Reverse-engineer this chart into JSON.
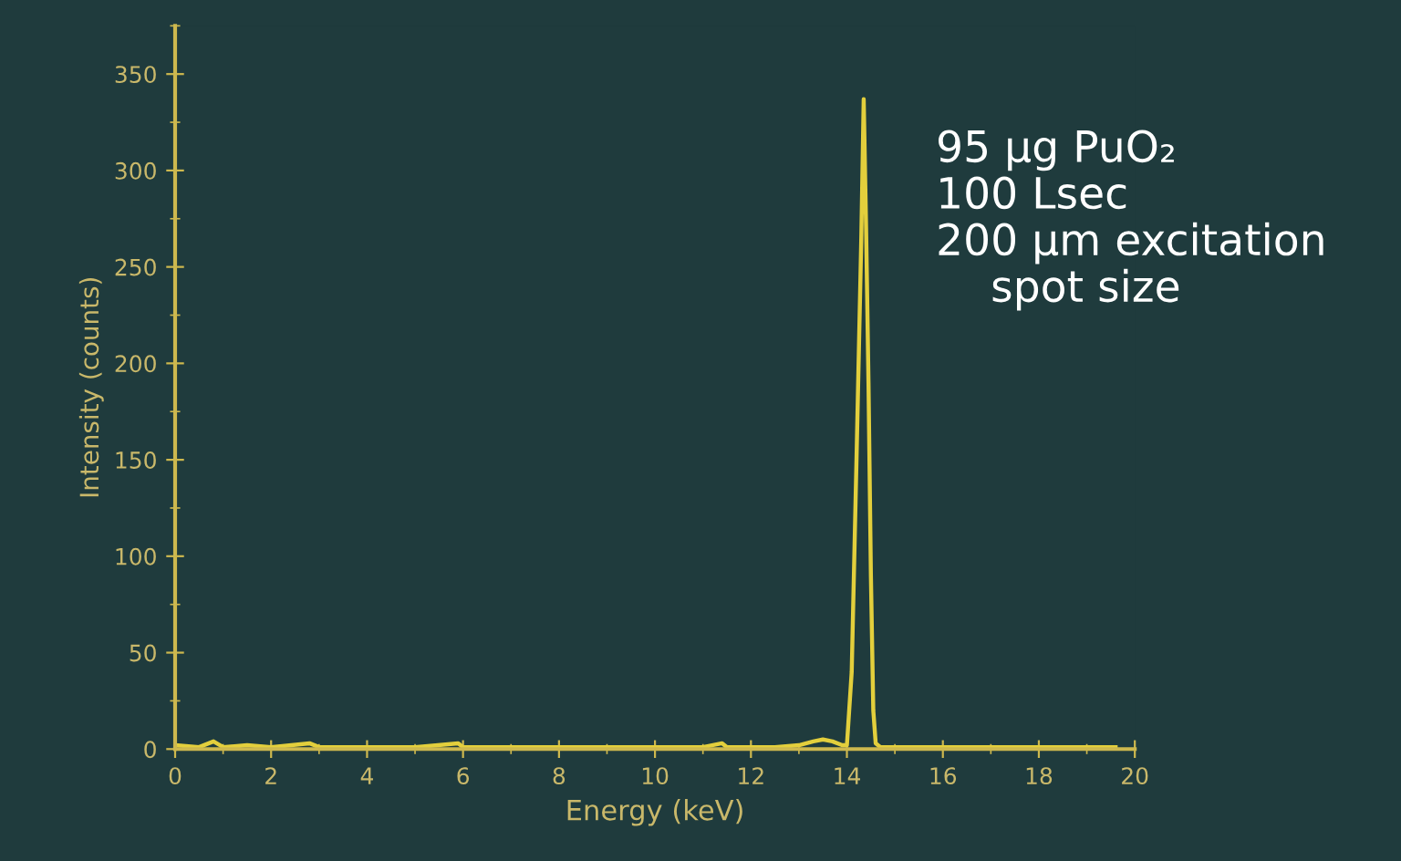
{
  "chart_data": {
    "type": "line",
    "xlabel": "Energy (keV)",
    "ylabel": "Intensity (counts)",
    "annotations": [
      "95 μg PuO₂\n100 Lsec\n200 μm excitation\n    spot size"
    ],
    "xlim": [
      0,
      20
    ],
    "xticks": [
      0,
      2,
      4,
      6,
      8,
      10,
      12,
      14,
      16,
      18,
      20
    ],
    "ylim": [
      0,
      375
    ],
    "yticks": [
      0,
      50,
      100,
      150,
      200,
      250,
      300,
      350
    ],
    "grid": false,
    "legend": false,
    "marker": "none",
    "line_style": "solid",
    "series": [
      {
        "color": "#e3cf3c",
        "x": [
          0,
          0.5,
          0.8,
          1,
          1.5,
          2,
          2.8,
          3,
          4,
          5,
          5.9,
          6,
          7,
          8,
          9,
          10,
          11,
          11.4,
          11.5,
          12,
          12.5,
          13,
          13.3,
          13.5,
          13.7,
          13.9,
          14.0,
          14.1,
          14.2,
          14.3,
          14.35,
          14.4,
          14.45,
          14.5,
          14.55,
          14.6,
          14.7,
          15,
          16,
          17,
          18,
          19,
          19.6
        ],
        "values": [
          2,
          1,
          4,
          1,
          2,
          1,
          3,
          1,
          1,
          1,
          3,
          1,
          1,
          1,
          1,
          1,
          1,
          3,
          1,
          1,
          1,
          2,
          4,
          5,
          4,
          2,
          2,
          40,
          150,
          265,
          337,
          270,
          190,
          90,
          20,
          3,
          1,
          1,
          1,
          1,
          1,
          1,
          1
        ]
      }
    ]
  }
}
